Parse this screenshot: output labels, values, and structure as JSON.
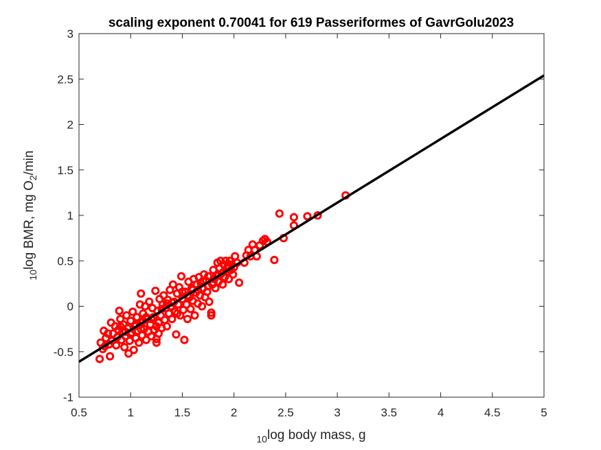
{
  "chart_data": {
    "type": "scatter",
    "title": "scaling exponent 0.70041 for 619 Passeriformes of GavrGolu2023",
    "xlabel_pre": "10",
    "xlabel": "log body mass, g",
    "ylabel_pre": "10",
    "ylabel_main": "log BMR, mg O",
    "ylabel_sub": "2",
    "ylabel_post": "/min",
    "xlim": [
      0.5,
      5
    ],
    "ylim": [
      -1,
      3
    ],
    "xticks": [
      0.5,
      1,
      1.5,
      2,
      2.5,
      3,
      3.5,
      4,
      4.5,
      5
    ],
    "xtick_labels": [
      "0.5",
      "1",
      "1.5",
      "2",
      "2.5",
      "3",
      "3.5",
      "4",
      "4.5",
      "5"
    ],
    "yticks": [
      -1,
      -0.5,
      0,
      0.5,
      1,
      1.5,
      2,
      2.5,
      3
    ],
    "ytick_labels": [
      "-1",
      "-0.5",
      "0",
      "0.5",
      "1",
      "1.5",
      "2",
      "2.5",
      "3"
    ],
    "grid": false,
    "marker_color": "#ff0000",
    "line_color": "#000000",
    "fit_line": {
      "slope": 0.70041,
      "points": [
        [
          0.5,
          -0.61
        ],
        [
          5.0,
          2.54
        ]
      ]
    },
    "points": [
      [
        0.7,
        -0.58
      ],
      [
        0.71,
        -0.4
      ],
      [
        0.73,
        -0.47
      ],
      [
        0.74,
        -0.27
      ],
      [
        0.75,
        -0.44
      ],
      [
        0.76,
        -0.35
      ],
      [
        0.78,
        -0.3
      ],
      [
        0.79,
        -0.42
      ],
      [
        0.8,
        -0.55
      ],
      [
        0.81,
        -0.18
      ],
      [
        0.82,
        -0.38
      ],
      [
        0.83,
        -0.3
      ],
      [
        0.85,
        -0.22
      ],
      [
        0.86,
        -0.43
      ],
      [
        0.87,
        -0.34
      ],
      [
        0.88,
        -0.26
      ],
      [
        0.89,
        -0.05
      ],
      [
        0.9,
        -0.14
      ],
      [
        0.91,
        -0.37
      ],
      [
        0.92,
        -0.28
      ],
      [
        0.93,
        -0.2
      ],
      [
        0.94,
        -0.45
      ],
      [
        0.95,
        -0.33
      ],
      [
        0.96,
        -0.1
      ],
      [
        0.97,
        -0.24
      ],
      [
        0.98,
        -0.52
      ],
      [
        0.99,
        -0.38
      ],
      [
        1.0,
        -0.16
      ],
      [
        1.01,
        -0.29
      ],
      [
        1.02,
        -0.06
      ],
      [
        1.03,
        -0.48
      ],
      [
        1.04,
        -0.22
      ],
      [
        1.05,
        -0.35
      ],
      [
        1.06,
        -0.12
      ],
      [
        1.07,
        -0.27
      ],
      [
        1.08,
        -0.4
      ],
      [
        1.09,
        0.02
      ],
      [
        1.1,
        0.14
      ],
      [
        1.1,
        -0.18
      ],
      [
        1.11,
        -0.32
      ],
      [
        1.12,
        -0.08
      ],
      [
        1.13,
        -0.25
      ],
      [
        1.14,
        0.0
      ],
      [
        1.15,
        -0.37
      ],
      [
        1.16,
        -0.14
      ],
      [
        1.17,
        -0.28
      ],
      [
        1.18,
        0.05
      ],
      [
        1.19,
        -0.2
      ],
      [
        1.2,
        -0.33
      ],
      [
        1.21,
        -0.02
      ],
      [
        1.22,
        -0.12
      ],
      [
        1.23,
        -0.26
      ],
      [
        1.24,
        0.17
      ],
      [
        1.25,
        -0.4
      ],
      [
        1.25,
        -0.36
      ],
      [
        1.26,
        -0.05
      ],
      [
        1.27,
        -0.18
      ],
      [
        1.28,
        0.08
      ],
      [
        1.29,
        -0.1
      ],
      [
        1.3,
        -0.24
      ],
      [
        1.31,
        0.02
      ],
      [
        1.32,
        0.12
      ],
      [
        1.33,
        -0.15
      ],
      [
        1.34,
        -0.02
      ],
      [
        1.35,
        -0.22
      ],
      [
        1.36,
        0.07
      ],
      [
        1.37,
        -0.08
      ],
      [
        1.38,
        0.18
      ],
      [
        1.39,
        0.0
      ],
      [
        1.4,
        -0.14
      ],
      [
        1.41,
        0.24
      ],
      [
        1.42,
        0.05
      ],
      [
        1.43,
        -0.06
      ],
      [
        1.44,
        -0.31
      ],
      [
        1.45,
        0.14
      ],
      [
        1.46,
        0.02
      ],
      [
        1.47,
        0.21
      ],
      [
        1.48,
        -0.1
      ],
      [
        1.49,
        0.33
      ],
      [
        1.5,
        0.08
      ],
      [
        1.51,
        -0.04
      ],
      [
        1.52,
        -0.37
      ],
      [
        1.53,
        0.16
      ],
      [
        1.54,
        0.02
      ],
      [
        1.55,
        -0.14
      ],
      [
        1.56,
        0.27
      ],
      [
        1.57,
        0.1
      ],
      [
        1.58,
        -0.03
      ],
      [
        1.59,
        0.2
      ],
      [
        1.6,
        0.06
      ],
      [
        1.61,
        0.3
      ],
      [
        1.62,
        -0.1
      ],
      [
        1.63,
        0.15
      ],
      [
        1.64,
        0.24
      ],
      [
        1.65,
        0.03
      ],
      [
        1.66,
        0.32
      ],
      [
        1.67,
        0.12
      ],
      [
        1.68,
        0.25
      ],
      [
        1.69,
        0.0
      ],
      [
        1.7,
        0.2
      ],
      [
        1.71,
        0.35
      ],
      [
        1.72,
        0.1
      ],
      [
        1.73,
        0.28
      ],
      [
        1.74,
        0.16
      ],
      [
        1.75,
        0.33
      ],
      [
        1.76,
        0.05
      ],
      [
        1.78,
        -0.1
      ],
      [
        1.78,
        -0.07
      ],
      [
        1.79,
        0.24
      ],
      [
        1.8,
        0.4
      ],
      [
        1.81,
        0.3
      ],
      [
        1.82,
        0.2
      ],
      [
        1.83,
        0.34
      ],
      [
        1.84,
        0.48
      ],
      [
        1.85,
        0.27
      ],
      [
        1.86,
        0.42
      ],
      [
        1.87,
        0.5
      ],
      [
        1.88,
        0.36
      ],
      [
        1.89,
        0.24
      ],
      [
        1.9,
        0.46
      ],
      [
        1.91,
        0.32
      ],
      [
        1.92,
        0.5
      ],
      [
        1.93,
        0.38
      ],
      [
        1.94,
        0.44
      ],
      [
        1.95,
        0.3
      ],
      [
        1.96,
        0.5
      ],
      [
        1.97,
        0.4
      ],
      [
        1.98,
        0.46
      ],
      [
        1.99,
        0.35
      ],
      [
        2.0,
        0.43
      ],
      [
        2.01,
        0.55
      ],
      [
        2.03,
        0.48
      ],
      [
        2.05,
        0.26
      ],
      [
        2.1,
        0.48
      ],
      [
        2.12,
        0.56
      ],
      [
        2.14,
        0.62
      ],
      [
        2.16,
        0.55
      ],
      [
        2.18,
        0.68
      ],
      [
        2.2,
        0.62
      ],
      [
        2.22,
        0.55
      ],
      [
        2.25,
        0.67
      ],
      [
        2.28,
        0.72
      ],
      [
        2.3,
        0.74
      ],
      [
        2.32,
        0.71
      ],
      [
        2.39,
        0.51
      ],
      [
        2.44,
        1.02
      ],
      [
        2.48,
        0.75
      ],
      [
        2.58,
        0.89
      ],
      [
        2.58,
        0.98
      ],
      [
        2.71,
        0.99
      ],
      [
        2.81,
        1.0
      ],
      [
        3.08,
        1.22
      ],
      [
        1.0,
        -0.31
      ],
      [
        1.1,
        -0.25
      ],
      [
        1.2,
        -0.14
      ],
      [
        1.3,
        -0.03
      ],
      [
        1.4,
        0.04
      ],
      [
        1.5,
        0.16
      ],
      [
        1.6,
        0.18
      ],
      [
        1.7,
        0.28
      ],
      [
        1.8,
        0.26
      ],
      [
        1.9,
        0.38
      ],
      [
        0.95,
        -0.28
      ],
      [
        1.05,
        -0.2
      ],
      [
        1.15,
        -0.12
      ],
      [
        1.25,
        -0.22
      ],
      [
        1.35,
        0.03
      ],
      [
        1.45,
        -0.08
      ],
      [
        1.55,
        0.12
      ],
      [
        1.65,
        0.18
      ],
      [
        1.75,
        0.22
      ],
      [
        1.85,
        0.34
      ],
      [
        1.95,
        0.42
      ],
      [
        0.9,
        -0.22
      ],
      [
        1.12,
        -0.16
      ],
      [
        1.27,
        -0.3
      ]
    ]
  }
}
